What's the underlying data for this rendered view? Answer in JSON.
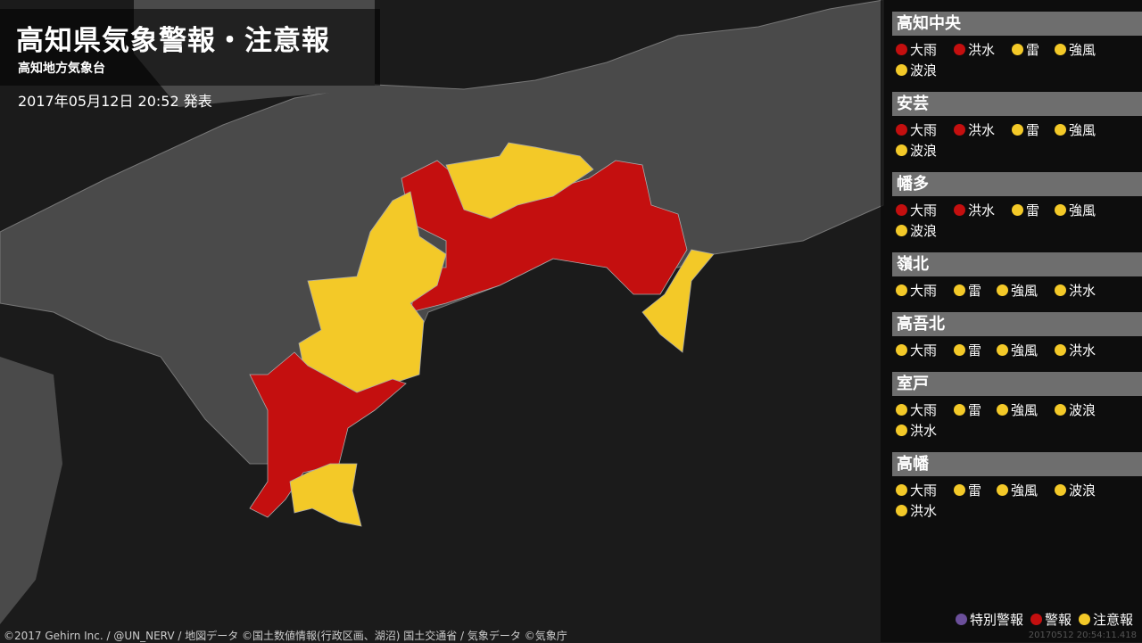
{
  "header": {
    "title": "高知県気象警報・注意報",
    "office": "高知地方気象台",
    "issued": "2017年05月12日 20:52 発表"
  },
  "colors": {
    "special": "#6b4f9a",
    "warning": "#c40f0f",
    "advisory": "#f3c928",
    "land": "#4a4a4a",
    "sea": "#1b1b1b"
  },
  "areas": [
    {
      "name": "高知中央",
      "items": [
        {
          "label": "大雨",
          "level": "warning"
        },
        {
          "label": "洪水",
          "level": "warning"
        },
        {
          "label": "雷",
          "level": "advisory"
        },
        {
          "label": "強風",
          "level": "advisory"
        },
        {
          "label": "波浪",
          "level": "advisory"
        }
      ]
    },
    {
      "name": "安芸",
      "items": [
        {
          "label": "大雨",
          "level": "warning"
        },
        {
          "label": "洪水",
          "level": "warning"
        },
        {
          "label": "雷",
          "level": "advisory"
        },
        {
          "label": "強風",
          "level": "advisory"
        },
        {
          "label": "波浪",
          "level": "advisory"
        }
      ]
    },
    {
      "name": "幡多",
      "items": [
        {
          "label": "大雨",
          "level": "warning"
        },
        {
          "label": "洪水",
          "level": "warning"
        },
        {
          "label": "雷",
          "level": "advisory"
        },
        {
          "label": "強風",
          "level": "advisory"
        },
        {
          "label": "波浪",
          "level": "advisory"
        }
      ]
    },
    {
      "name": "嶺北",
      "items": [
        {
          "label": "大雨",
          "level": "advisory"
        },
        {
          "label": "雷",
          "level": "advisory"
        },
        {
          "label": "強風",
          "level": "advisory"
        },
        {
          "label": "洪水",
          "level": "advisory"
        }
      ]
    },
    {
      "name": "高吾北",
      "items": [
        {
          "label": "大雨",
          "level": "advisory"
        },
        {
          "label": "雷",
          "level": "advisory"
        },
        {
          "label": "強風",
          "level": "advisory"
        },
        {
          "label": "洪水",
          "level": "advisory"
        }
      ]
    },
    {
      "name": "室戸",
      "items": [
        {
          "label": "大雨",
          "level": "advisory"
        },
        {
          "label": "雷",
          "level": "advisory"
        },
        {
          "label": "強風",
          "level": "advisory"
        },
        {
          "label": "波浪",
          "level": "advisory"
        },
        {
          "label": "洪水",
          "level": "advisory"
        }
      ]
    },
    {
      "name": "高幡",
      "items": [
        {
          "label": "大雨",
          "level": "advisory"
        },
        {
          "label": "雷",
          "level": "advisory"
        },
        {
          "label": "強風",
          "level": "advisory"
        },
        {
          "label": "波浪",
          "level": "advisory"
        },
        {
          "label": "洪水",
          "level": "advisory"
        }
      ]
    }
  ],
  "legend": [
    {
      "label": "特別警報",
      "level": "special"
    },
    {
      "label": "警報",
      "level": "warning"
    },
    {
      "label": "注意報",
      "level": "advisory"
    }
  ],
  "credit": "©2017 Gehirn Inc. / @UN_NERV / 地図データ ©国土数値情報(行政区画、湖沼) 国土交通省 / 気象データ ©気象庁",
  "timestamp": "20170512 20:54:11.418"
}
